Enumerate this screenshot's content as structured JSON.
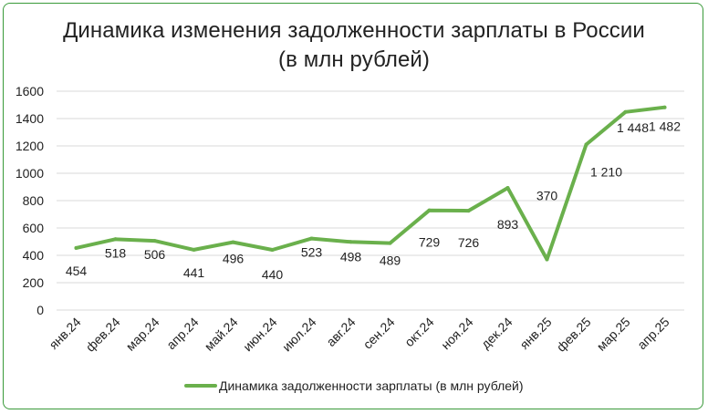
{
  "chart_data": {
    "type": "line",
    "title_line1": "Динамика изменения задолженности зарплаты в России",
    "title_line2": "(в млн рублей)",
    "categories": [
      "янв.24",
      "фев.24",
      "мар.24",
      "апр.24",
      "май.24",
      "июн.24",
      "июл.24",
      "авг.24",
      "сен.24",
      "окт.24",
      "ноя.24",
      "дек.24",
      "янв.25",
      "фев.25",
      "мар.25",
      "апр.25"
    ],
    "series": [
      {
        "name": "Динамика задолженности зарплаты  (в млн рублей)",
        "values": [
          454,
          518,
          506,
          441,
          496,
          440,
          523,
          498,
          489,
          729,
          726,
          893,
          370,
          1210,
          1448,
          1482
        ],
        "labels": [
          "454",
          "518",
          "506",
          "441",
          "496",
          "440",
          "523",
          "498",
          "489",
          "729",
          "726",
          "893",
          "370",
          "1 210",
          "1 448",
          "1 482"
        ]
      }
    ],
    "ylim": [
      0,
      1600
    ],
    "yticks": [
      0,
      200,
      400,
      600,
      800,
      1000,
      1200,
      1400,
      1600
    ],
    "grid": true,
    "legend": "bottom",
    "color": "#6ab04c"
  }
}
